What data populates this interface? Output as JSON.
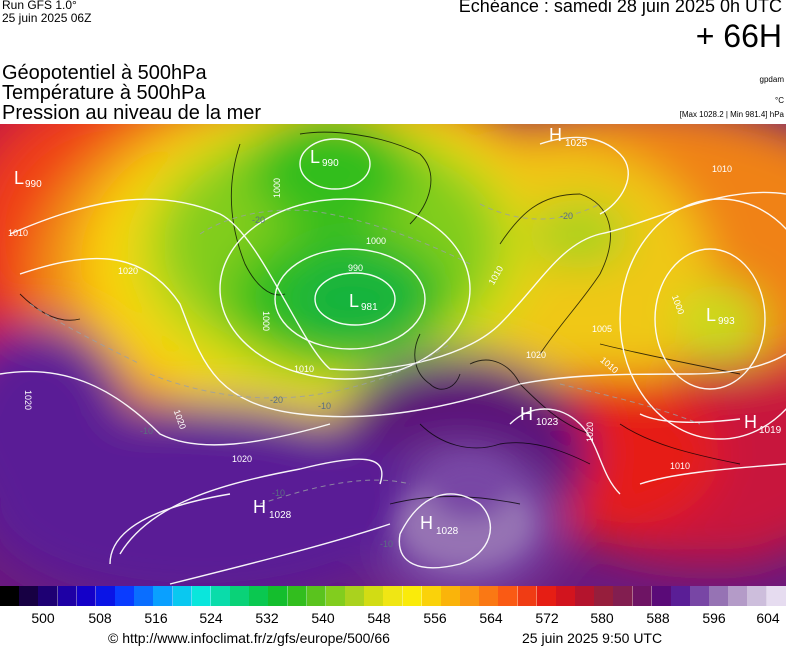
{
  "header": {
    "run": "Run GFS 1.0°",
    "run_date": "25 juin 2025 06Z",
    "echeance": "Echéance : samedi 28 juin 2025 0h UTC",
    "lead": "+ 66H",
    "fields": [
      "Géopotentiel à 500hPa",
      "Température à 500hPa",
      "Pression au niveau de la mer"
    ],
    "unit_geo": "gpdam",
    "unit_temp": "°C",
    "pressure_range": "[Max 1028.2 | Min 981.4] hPa"
  },
  "map": {
    "pressure_centers": [
      {
        "type": "L",
        "value": "990"
      },
      {
        "type": "L",
        "value": "990"
      },
      {
        "type": "L",
        "value": "981"
      },
      {
        "type": "L",
        "value": "993"
      },
      {
        "type": "H",
        "value": "1025"
      },
      {
        "type": "H",
        "value": "1023"
      },
      {
        "type": "H",
        "value": "1019"
      },
      {
        "type": "H",
        "value": "1028"
      },
      {
        "type": "H",
        "value": "1028"
      }
    ],
    "isobar_labels": [
      "1010",
      "1020",
      "1000",
      "1000",
      "990",
      "1000",
      "1010",
      "1020",
      "1020",
      "1010",
      "1000",
      "1005",
      "1010",
      "1020",
      "1020",
      "1010",
      "1020",
      "1010"
    ],
    "temp_labels": [
      "-20",
      "-20",
      "-20",
      "-10",
      "-10",
      "-10",
      "-10"
    ]
  },
  "scale": {
    "tick_labels": [
      "500",
      "508",
      "516",
      "524",
      "532",
      "540",
      "548",
      "556",
      "564",
      "572",
      "580",
      "588",
      "596",
      "604"
    ],
    "colors": [
      "#000000",
      "#170043",
      "#1e0073",
      "#1e00a5",
      "#1400c8",
      "#0a14e6",
      "#0a3cff",
      "#0a6eff",
      "#0aa0ff",
      "#0ac8f0",
      "#0ae6dc",
      "#0adcaa",
      "#0ad278",
      "#0ac850",
      "#14be2d",
      "#32be1e",
      "#5ac31e",
      "#82cd1e",
      "#aad21e",
      "#d2dc14",
      "#f0e614",
      "#faeb0a",
      "#fad20a",
      "#fab40a",
      "#fa9614",
      "#fa7814",
      "#fa5a14",
      "#f03c14",
      "#e61e14",
      "#d2141e",
      "#b4142d",
      "#961e3c",
      "#821e50",
      "#6e1464",
      "#5a0a78",
      "#5a1e96",
      "#7846a5",
      "#9673b4",
      "#b49bc8",
      "#cdbedc",
      "#e6dcf0"
    ]
  },
  "footer": {
    "url": "© http://www.infoclimat.fr/z/gfs/europe/500/66",
    "timestamp": "25 juin 2025  9:50 UTC"
  }
}
